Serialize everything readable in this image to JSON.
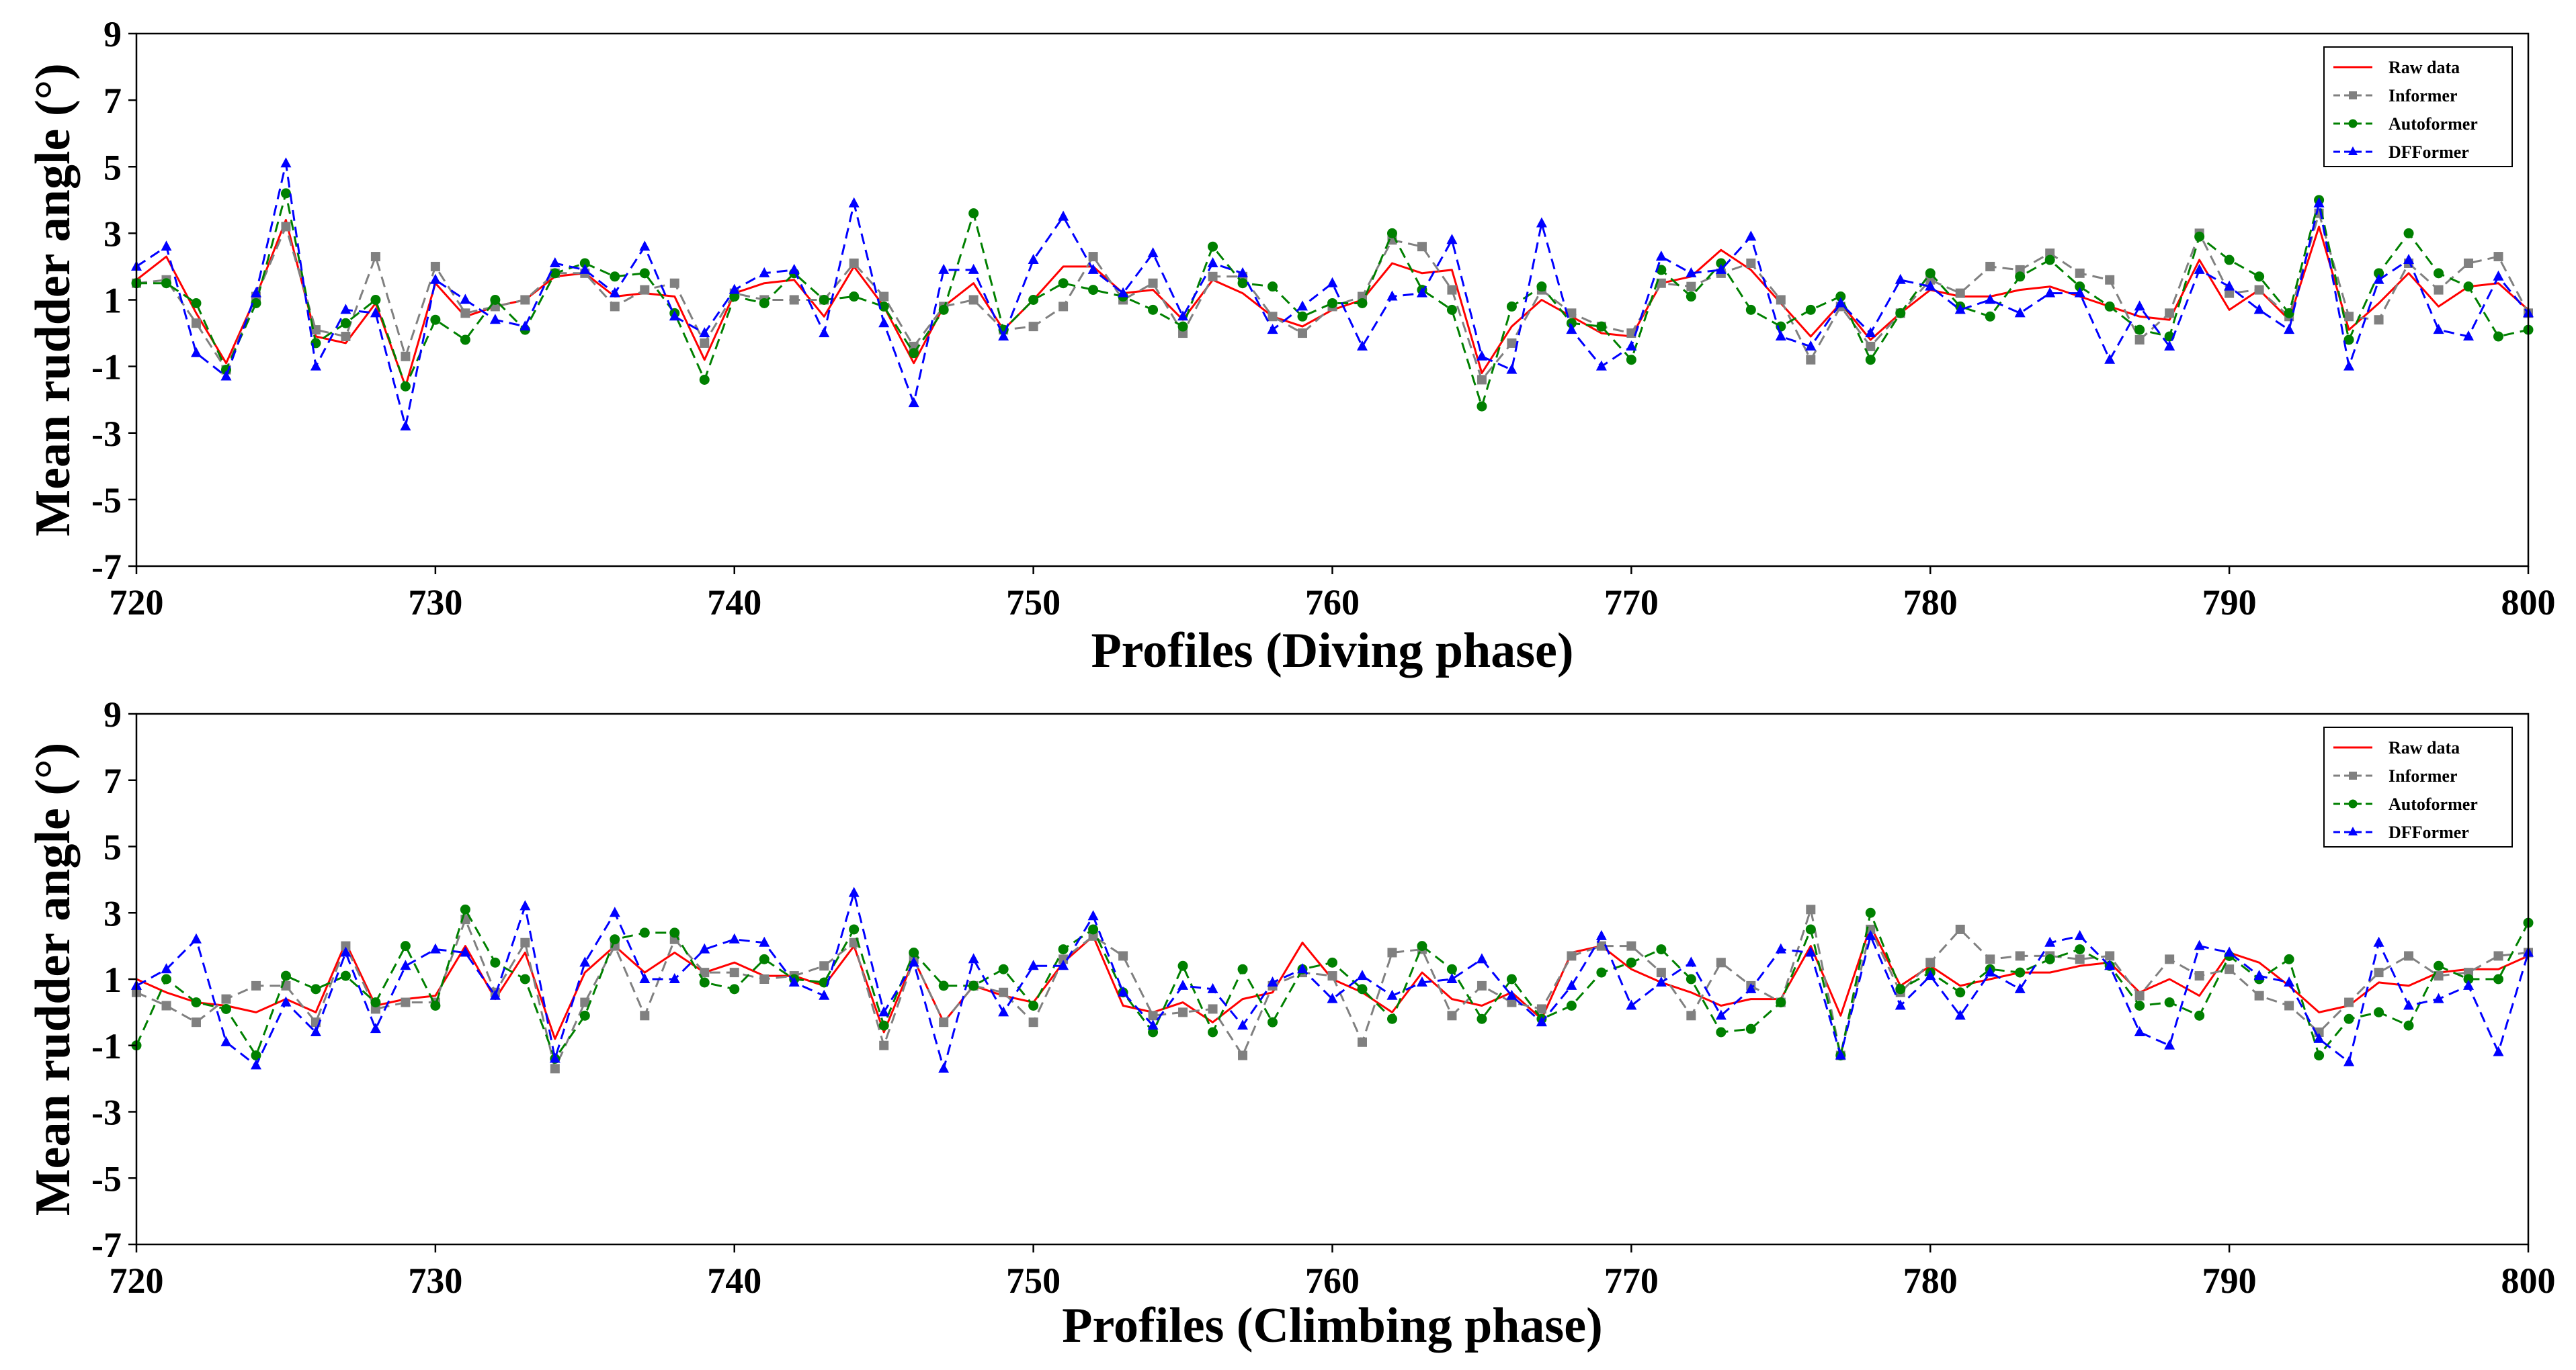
{
  "chart_data": [
    {
      "type": "line",
      "xlabel": "Profiles (Diving phase)",
      "ylabel": "Mean rudder angle (°)",
      "xlim": [
        720,
        800
      ],
      "ylim": [
        -7,
        9
      ],
      "xticks": [
        720,
        730,
        740,
        750,
        760,
        770,
        780,
        790,
        800
      ],
      "yticks": [
        -7,
        -5,
        -3,
        -1,
        1,
        3,
        5,
        7,
        9
      ],
      "grid": false,
      "legend_position": "top-right",
      "x": [
        720,
        721,
        722,
        723,
        724,
        725,
        726,
        727,
        728,
        729,
        730,
        731,
        732,
        733,
        734,
        735,
        736,
        737,
        738,
        739,
        740,
        741,
        742,
        743,
        744,
        745,
        746,
        747,
        748,
        749,
        750,
        751,
        752,
        753,
        754,
        755,
        756,
        757,
        758,
        759,
        760,
        761,
        762,
        763,
        764,
        765,
        766,
        767,
        768,
        769,
        770,
        771,
        772,
        773,
        774,
        775,
        776,
        777,
        778,
        779,
        780,
        781,
        782,
        783,
        784,
        785,
        786,
        787,
        788,
        789,
        790,
        791,
        792,
        793,
        794,
        795,
        796,
        797,
        798,
        799,
        800
      ],
      "series": [
        {
          "name": "Raw data",
          "color": "#ff0000",
          "dash": "solid",
          "marker": "none",
          "values": [
            1.6,
            2.3,
            0.6,
            -0.9,
            1.1,
            3.4,
            -0.1,
            -0.3,
            0.9,
            -1.6,
            1.5,
            0.5,
            0.8,
            1.0,
            1.7,
            1.8,
            1.1,
            1.2,
            1.1,
            -0.8,
            1.2,
            1.5,
            1.6,
            0.5,
            2.0,
            0.8,
            -0.9,
            0.8,
            1.5,
            0.1,
            1.0,
            2.0,
            2.0,
            1.2,
            1.3,
            0.4,
            1.6,
            1.2,
            0.5,
            0.2,
            0.7,
            1.0,
            2.1,
            1.8,
            1.9,
            -1.2,
            0.2,
            1.0,
            0.5,
            0.0,
            -0.1,
            1.5,
            1.7,
            2.5,
            1.9,
            0.9,
            -0.1,
            0.9,
            -0.2,
            0.6,
            1.3,
            1.1,
            1.1,
            1.3,
            1.4,
            1.1,
            0.8,
            0.5,
            0.4,
            2.2,
            0.7,
            1.3,
            0.4,
            3.2,
            0.1,
            0.9,
            1.8,
            0.8,
            1.4,
            1.5,
            0.7
          ]
        },
        {
          "name": "Informer",
          "color": "#808080",
          "dash": "dashed",
          "marker": "square",
          "values": [
            1.5,
            1.6,
            0.3,
            -1.1,
            1.1,
            3.2,
            0.1,
            -0.1,
            2.3,
            -0.7,
            2.0,
            0.6,
            0.8,
            1.0,
            1.8,
            1.8,
            0.8,
            1.3,
            1.5,
            -0.3,
            1.2,
            1.0,
            1.0,
            1.0,
            2.1,
            1.1,
            -0.4,
            0.8,
            1.0,
            0.1,
            0.2,
            0.8,
            2.3,
            1.0,
            1.5,
            0.0,
            1.7,
            1.7,
            0.5,
            0.0,
            0.8,
            1.1,
            2.8,
            2.6,
            1.3,
            -1.4,
            -0.3,
            1.3,
            0.6,
            0.2,
            0.0,
            1.5,
            1.4,
            1.8,
            2.1,
            1.0,
            -0.8,
            0.8,
            -0.4,
            0.6,
            1.6,
            1.2,
            2.0,
            1.9,
            2.4,
            1.8,
            1.6,
            -0.2,
            0.6,
            3.0,
            1.2,
            1.3,
            0.5,
            3.6,
            0.5,
            0.4,
            2.1,
            1.3,
            2.1,
            2.3,
            0.6
          ]
        },
        {
          "name": "Autoformer",
          "color": "#008000",
          "dash": "dashed",
          "marker": "circle",
          "values": [
            1.5,
            1.5,
            0.9,
            -1.1,
            0.9,
            4.2,
            -0.3,
            0.3,
            1.0,
            -1.6,
            0.4,
            -0.2,
            1.0,
            0.1,
            1.8,
            2.1,
            1.7,
            1.8,
            0.6,
            -1.4,
            1.1,
            0.9,
            1.8,
            1.0,
            1.1,
            0.8,
            -0.6,
            0.7,
            3.6,
            0.1,
            1.0,
            1.5,
            1.3,
            1.1,
            0.7,
            0.2,
            2.6,
            1.5,
            1.4,
            0.5,
            0.9,
            0.9,
            3.0,
            1.3,
            0.7,
            -2.2,
            0.8,
            1.4,
            0.3,
            0.2,
            -0.8,
            1.9,
            1.1,
            2.1,
            0.7,
            0.2,
            0.7,
            1.1,
            -0.8,
            0.6,
            1.8,
            0.8,
            0.5,
            1.7,
            2.2,
            1.4,
            0.8,
            0.1,
            -0.1,
            2.9,
            2.2,
            1.7,
            0.6,
            4.0,
            -0.2,
            1.8,
            3.0,
            1.8,
            1.4,
            -0.1,
            0.1
          ]
        },
        {
          "name": "DFFormer",
          "color": "#0000ff",
          "dash": "dashed",
          "marker": "triangle",
          "values": [
            2.0,
            2.6,
            -0.6,
            -1.3,
            1.2,
            5.1,
            -1.0,
            0.7,
            0.6,
            -2.8,
            1.6,
            1.0,
            0.4,
            0.2,
            2.1,
            1.9,
            1.2,
            2.6,
            0.5,
            0.0,
            1.3,
            1.8,
            1.9,
            0.0,
            3.9,
            0.3,
            -2.1,
            1.9,
            1.9,
            -0.1,
            2.2,
            3.5,
            1.9,
            1.2,
            2.4,
            0.5,
            2.1,
            1.8,
            0.1,
            0.8,
            1.5,
            -0.4,
            1.1,
            1.2,
            2.8,
            -0.7,
            -1.1,
            3.3,
            0.1,
            -1.0,
            -0.4,
            2.3,
            1.8,
            1.9,
            2.9,
            -0.1,
            -0.4,
            0.9,
            0.0,
            1.6,
            1.4,
            0.7,
            1.0,
            0.6,
            1.2,
            1.2,
            -0.8,
            0.8,
            -0.4,
            1.9,
            1.4,
            0.7,
            0.1,
            3.9,
            -1.0,
            1.6,
            2.2,
            0.1,
            -0.1,
            1.7,
            0.6
          ]
        }
      ]
    },
    {
      "type": "line",
      "xlabel": "Profiles (Climbing phase)",
      "ylabel": "Mean rudder angle (°)",
      "xlim": [
        720,
        800
      ],
      "ylim": [
        -7,
        9
      ],
      "xticks": [
        720,
        730,
        740,
        750,
        760,
        770,
        780,
        790,
        800
      ],
      "yticks": [
        -7,
        -5,
        -3,
        -1,
        1,
        3,
        5,
        7,
        9
      ],
      "grid": false,
      "legend_position": "top-right",
      "x": [
        720,
        721,
        722,
        723,
        724,
        725,
        726,
        727,
        728,
        729,
        730,
        731,
        732,
        733,
        734,
        735,
        736,
        737,
        738,
        739,
        740,
        741,
        742,
        743,
        744,
        745,
        746,
        747,
        748,
        749,
        750,
        751,
        752,
        753,
        754,
        755,
        756,
        757,
        758,
        759,
        760,
        761,
        762,
        763,
        764,
        765,
        766,
        767,
        768,
        769,
        770,
        771,
        772,
        773,
        774,
        775,
        776,
        777,
        778,
        779,
        780,
        781,
        782,
        783,
        784,
        785,
        786,
        787,
        788,
        789,
        790,
        791,
        792,
        793,
        794,
        795,
        796,
        797,
        798,
        799,
        800
      ],
      "series": [
        {
          "name": "Raw data",
          "color": "#ff0000",
          "dash": "solid",
          "marker": "none",
          "values": [
            1.0,
            0.6,
            0.3,
            0.2,
            0.0,
            0.4,
            0.0,
            2.1,
            0.2,
            0.4,
            0.5,
            2.0,
            0.4,
            1.8,
            -0.8,
            1.2,
            2.0,
            1.2,
            1.8,
            1.2,
            1.5,
            1.1,
            1.1,
            0.8,
            2.0,
            -0.6,
            1.6,
            -0.3,
            0.8,
            0.5,
            0.3,
            1.5,
            2.3,
            0.2,
            0.0,
            0.3,
            -0.3,
            0.4,
            0.6,
            2.1,
            1.0,
            0.6,
            0.0,
            1.2,
            0.4,
            0.2,
            0.6,
            -0.2,
            1.8,
            2.0,
            1.3,
            0.9,
            0.6,
            0.2,
            0.4,
            0.4,
            2.0,
            -0.1,
            2.6,
            0.8,
            1.4,
            0.8,
            1.0,
            1.2,
            1.2,
            1.4,
            1.5,
            0.6,
            1.0,
            0.5,
            1.8,
            1.5,
            0.8,
            0.0,
            0.2,
            0.9,
            0.8,
            1.2,
            1.3,
            1.3,
            1.7
          ]
        },
        {
          "name": "Informer",
          "color": "#808080",
          "dash": "dashed",
          "marker": "square",
          "values": [
            0.6,
            0.2,
            -0.3,
            0.4,
            0.8,
            0.8,
            -0.3,
            2.0,
            0.1,
            0.3,
            0.3,
            2.8,
            0.6,
            2.1,
            -1.7,
            0.3,
            2.0,
            -0.1,
            2.2,
            1.2,
            1.2,
            1.0,
            1.1,
            1.4,
            2.1,
            -1.0,
            1.6,
            -0.3,
            0.8,
            0.6,
            -0.3,
            1.6,
            2.3,
            1.7,
            -0.1,
            0.0,
            0.1,
            -1.3,
            0.8,
            1.2,
            1.1,
            -0.9,
            1.8,
            1.9,
            -0.1,
            0.8,
            0.3,
            0.1,
            1.7,
            2.0,
            2.0,
            1.2,
            -0.1,
            1.5,
            0.8,
            0.3,
            3.1,
            -1.3,
            2.5,
            0.6,
            1.5,
            2.5,
            1.6,
            1.7,
            1.7,
            1.6,
            1.7,
            0.5,
            1.6,
            1.1,
            1.3,
            0.5,
            0.2,
            -0.6,
            0.3,
            1.2,
            1.7,
            1.1,
            1.2,
            1.7,
            1.8
          ]
        },
        {
          "name": "Autoformer",
          "color": "#008000",
          "dash": "dashed",
          "marker": "circle",
          "values": [
            -1.0,
            1.0,
            0.3,
            0.1,
            -1.3,
            1.1,
            0.7,
            1.1,
            0.3,
            2.0,
            0.2,
            3.1,
            1.5,
            1.0,
            -1.4,
            -0.1,
            2.2,
            2.4,
            2.4,
            0.9,
            0.7,
            1.6,
            1.0,
            0.9,
            2.5,
            -0.4,
            1.8,
            0.8,
            0.8,
            1.3,
            0.2,
            1.9,
            2.5,
            0.6,
            -0.6,
            1.4,
            -0.6,
            1.3,
            -0.3,
            1.3,
            1.5,
            0.7,
            -0.2,
            2.0,
            1.3,
            -0.2,
            1.0,
            -0.2,
            0.2,
            1.2,
            1.5,
            1.9,
            1.0,
            -0.6,
            -0.5,
            0.3,
            2.5,
            -1.3,
            3.0,
            0.7,
            1.2,
            0.6,
            1.3,
            1.2,
            1.6,
            1.9,
            1.4,
            0.2,
            0.3,
            -0.1,
            1.7,
            1.0,
            1.6,
            -1.3,
            -0.2,
            0.0,
            -0.4,
            1.4,
            1.0,
            1.0,
            2.7
          ]
        },
        {
          "name": "DFFormer",
          "color": "#0000ff",
          "dash": "dashed",
          "marker": "triangle",
          "values": [
            0.8,
            1.3,
            2.2,
            -0.9,
            -1.6,
            0.3,
            -0.6,
            1.8,
            -0.5,
            1.4,
            1.9,
            1.8,
            0.5,
            3.2,
            -1.4,
            1.5,
            3.0,
            1.0,
            1.0,
            1.9,
            2.2,
            2.1,
            0.9,
            0.5,
            3.6,
            0.0,
            1.5,
            -1.7,
            1.6,
            0.0,
            1.4,
            1.4,
            2.9,
            0.6,
            -0.4,
            0.8,
            0.7,
            -0.4,
            0.9,
            1.3,
            0.4,
            1.1,
            0.5,
            0.9,
            1.0,
            1.6,
            0.5,
            -0.3,
            0.8,
            2.3,
            0.2,
            0.9,
            1.5,
            -0.1,
            0.7,
            1.9,
            1.8,
            -1.3,
            2.3,
            0.2,
            1.1,
            -0.1,
            1.2,
            0.7,
            2.1,
            2.3,
            1.4,
            -0.6,
            -1.0,
            2.0,
            1.8,
            1.1,
            0.9,
            -0.8,
            -1.5,
            2.1,
            0.2,
            0.4,
            0.8,
            -1.2,
            1.8
          ]
        }
      ]
    }
  ]
}
